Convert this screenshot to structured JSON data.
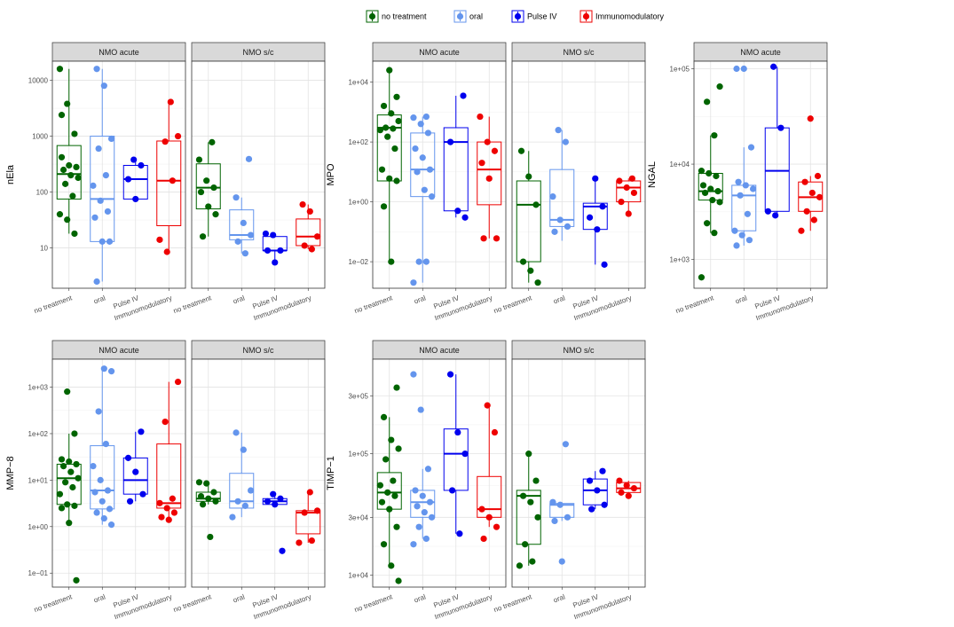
{
  "legend": {
    "items": [
      {
        "label": "no treatment",
        "color": "#006400"
      },
      {
        "label": "oral",
        "color": "#6495ED"
      },
      {
        "label": "Pulse IV",
        "color": "#0000EE"
      },
      {
        "label": "Immunomodulatory",
        "color": "#EE0000"
      }
    ]
  },
  "chart_data": [
    {
      "type": "boxplot",
      "ylabel": "nEla",
      "yscale": "log",
      "facets": [
        "NMO acute",
        "NMO s/c"
      ],
      "categories": [
        "no treatment",
        "oral",
        "Pulse IV",
        "Immunomodulatory"
      ],
      "yticks": [
        10,
        100,
        1000,
        10000
      ],
      "yticklabels": [
        "10",
        "100",
        "1000",
        "10000"
      ],
      "ylim": [
        1.9,
        22000
      ],
      "boxes": [
        [
          {
            "q1": 75,
            "med": 210,
            "q3": 680,
            "lo": 18,
            "hi": 16000,
            "pts": [
              16000,
              3800,
              1100,
              420,
              300,
              280,
              250,
              200,
              180,
              140,
              85,
              40,
              32,
              18,
              2400
            ]
          },
          {
            "q1": 13,
            "med": 75,
            "q3": 1000,
            "lo": 2.5,
            "hi": 16000,
            "pts": [
              16000,
              8000,
              900,
              600,
              200,
              130,
              70,
              45,
              35,
              13,
              13,
              2.5
            ]
          },
          {
            "q1": 75,
            "med": 170,
            "q3": 300,
            "lo": 75,
            "hi": 380,
            "pts": [
              380,
              300,
              170,
              75
            ]
          },
          {
            "q1": 25,
            "med": 160,
            "q3": 820,
            "lo": 8.5,
            "hi": 4100,
            "pts": [
              4100,
              1000,
              800,
              160,
              14,
              8.5
            ]
          }
        ],
        [
          {
            "q1": 50,
            "med": 120,
            "q3": 320,
            "lo": 16,
            "hi": 780,
            "pts": [
              780,
              380,
              160,
              120,
              100,
              55,
              40,
              16
            ]
          },
          {
            "q1": 14,
            "med": 17,
            "q3": 48,
            "lo": 8,
            "hi": 80,
            "pts": [
              390,
              80,
              28,
              17,
              13,
              8
            ]
          },
          {
            "q1": 9,
            "med": 9,
            "q3": 16,
            "lo": 5.5,
            "hi": 18,
            "pts": [
              18,
              17,
              9,
              9,
              5.5
            ]
          },
          {
            "q1": 11,
            "med": 16,
            "q3": 33,
            "lo": 9.5,
            "hi": 60,
            "pts": [
              60,
              45,
              16,
              11,
              9.5
            ]
          }
        ]
      ]
    },
    {
      "type": "boxplot",
      "ylabel": "MPO",
      "yscale": "log",
      "facets": [
        "NMO acute",
        "NMO s/c"
      ],
      "categories": [
        "no treatment",
        "oral",
        "Pulse IV",
        "Immunomodulatory"
      ],
      "yticks": [
        0.01,
        1,
        100,
        10000
      ],
      "yticklabels": [
        "1e−02",
        "1e+00",
        "1e+02",
        "1e+04"
      ],
      "ylim": [
        0.0013,
        50000
      ],
      "boxes": [
        [
          {
            "q1": 5,
            "med": 300,
            "q3": 800,
            "lo": 0.01,
            "hi": 25000,
            "pts": [
              25000,
              3200,
              1600,
              900,
              500,
              300,
              280,
              250,
              150,
              60,
              12,
              6,
              5,
              0.7,
              0.01
            ]
          },
          {
            "q1": 1.5,
            "med": 12,
            "q3": 200,
            "lo": 0.002,
            "hi": 700,
            "pts": [
              700,
              650,
              400,
              200,
              60,
              30,
              12,
              10,
              2.5,
              1.5,
              0.01,
              0.01,
              0.002
            ]
          },
          {
            "q1": 0.5,
            "med": 100,
            "q3": 300,
            "lo": 0.3,
            "hi": 3500,
            "pts": [
              3500,
              100,
              0.5,
              0.3
            ]
          },
          {
            "q1": 0.8,
            "med": 12,
            "q3": 100,
            "lo": 0.06,
            "hi": 700,
            "pts": [
              700,
              100,
              50,
              20,
              6,
              0.06,
              0.06
            ]
          }
        ],
        [
          {
            "q1": 0.01,
            "med": 0.8,
            "q3": 5,
            "lo": 0.002,
            "hi": 50,
            "pts": [
              50,
              7,
              0.8,
              0.01,
              0.005,
              0.002
            ]
          },
          {
            "q1": 0.15,
            "med": 0.25,
            "q3": 12,
            "lo": 0.05,
            "hi": 250,
            "pts": [
              250,
              100,
              1.5,
              0.25,
              0.15,
              0.1
            ]
          },
          {
            "q1": 0.12,
            "med": 0.7,
            "q3": 0.9,
            "lo": 0.008,
            "hi": 6,
            "pts": [
              6,
              0.7,
              0.3,
              0.12,
              0.008
            ]
          },
          {
            "q1": 1,
            "med": 3,
            "q3": 5,
            "lo": 0.4,
            "hi": 6,
            "pts": [
              6,
              5,
              3,
              2,
              1,
              0.4
            ]
          }
        ]
      ]
    },
    {
      "type": "boxplot",
      "ylabel": "NGAL",
      "yscale": "log",
      "facets": [
        "NMO acute",
        "NMO s/c"
      ],
      "categories": [
        "no treatment",
        "oral",
        "Pulse IV",
        "Immunomodulatory"
      ],
      "yticks": [
        1000,
        10000,
        100000
      ],
      "yticklabels": [
        "1e+03",
        "1e+04",
        "1e+05"
      ],
      "ylim": [
        500,
        120000
      ],
      "boxes": [
        [
          {
            "q1": 4200,
            "med": 5200,
            "q3": 8000,
            "lo": 1900,
            "hi": 20000,
            "pts": [
              65000,
              45000,
              20000,
              8500,
              8000,
              7500,
              6000,
              5500,
              5200,
              5000,
              4200,
              4000,
              2400,
              1900,
              650
            ]
          },
          {
            "q1": 2000,
            "med": 4700,
            "q3": 6000,
            "lo": 1400,
            "hi": 15000,
            "pts": [
              100000,
              100000,
              15000,
              6500,
              6000,
              5500,
              4700,
              3000,
              2000,
              1800,
              1600,
              1400
            ]
          },
          {
            "q1": 3200,
            "med": 8500,
            "q3": 24000,
            "lo": 2900,
            "hi": 105000,
            "pts": [
              105000,
              24000,
              3200,
              2900
            ]
          },
          {
            "q1": 3200,
            "med": 4500,
            "q3": 6500,
            "lo": 2000,
            "hi": 7500,
            "pts": [
              30000,
              7500,
              6500,
              5000,
              4500,
              3200,
              2600,
              2000
            ]
          }
        ],
        [
          {
            "q1": 1300,
            "med": 3000,
            "q3": 6000,
            "lo": 750,
            "hi": 12000,
            "pts": [
              12000,
              8000,
              5500,
              3500,
              2500,
              1800,
              900,
              750
            ]
          },
          {
            "q1": 1700,
            "med": 1750,
            "q3": 1850,
            "lo": 1400,
            "hi": 1950,
            "pts": [
              11000,
              1950,
              1850,
              1750,
              1700,
              1600,
              1400
            ]
          },
          {
            "q1": 3000,
            "med": 4500,
            "q3": 5500,
            "lo": 2200,
            "hi": 7500,
            "pts": [
              7500,
              5500,
              4500,
              3000,
              2200
            ]
          },
          {
            "q1": 3300,
            "med": 6000,
            "q3": 6500,
            "lo": 2500,
            "hi": 8000,
            "pts": [
              8000,
              6500,
              6000,
              3300,
              2800,
              2500
            ]
          }
        ]
      ]
    },
    {
      "type": "boxplot",
      "ylabel": "MMP−8",
      "yscale": "log",
      "facets": [
        "NMO acute",
        "NMO s/c"
      ],
      "categories": [
        "no treatment",
        "oral",
        "Pulse IV",
        "Immunomodulatory"
      ],
      "yticks": [
        0.1,
        1,
        10,
        100,
        1000
      ],
      "yticklabels": [
        "1e−01",
        "1e+00",
        "1e+01",
        "1e+02",
        "1e+03"
      ],
      "ylim": [
        0.05,
        4000
      ],
      "boxes": [
        [
          {
            "q1": 3,
            "med": 11,
            "q3": 22,
            "lo": 1.2,
            "hi": 100,
            "pts": [
              800,
              100,
              28,
              25,
              22,
              20,
              15,
              11,
              9,
              7,
              5,
              3,
              2.8,
              2.5,
              1.2,
              0.07
            ]
          },
          {
            "q1": 2.4,
            "med": 6,
            "q3": 55,
            "lo": 1.1,
            "hi": 2500,
            "pts": [
              2500,
              2200,
              300,
              60,
              20,
              10,
              6,
              5.5,
              3.5,
              2.4,
              2,
              1.5,
              1.1
            ]
          },
          {
            "q1": 5,
            "med": 10,
            "q3": 30,
            "lo": 3.5,
            "hi": 110,
            "pts": [
              110,
              30,
              15,
              5,
              3.5
            ]
          },
          {
            "q1": 2.5,
            "med": 3.2,
            "q3": 60,
            "lo": 1.4,
            "hi": 1300,
            "pts": [
              1300,
              180,
              4,
              3.2,
              2.5,
              2,
              1.6,
              1.4
            ]
          }
        ],
        [
          {
            "q1": 3.5,
            "med": 4,
            "q3": 5.5,
            "lo": 3,
            "hi": 9,
            "pts": [
              9,
              8.5,
              5.5,
              4.5,
              4,
              3.5,
              3,
              0.6
            ]
          },
          {
            "q1": 2.5,
            "med": 3.5,
            "q3": 14,
            "lo": 1.6,
            "hi": 105,
            "pts": [
              105,
              45,
              6,
              3.5,
              2.8,
              1.6
            ]
          },
          {
            "q1": 3,
            "med": 3.5,
            "q3": 4,
            "lo": 2.8,
            "hi": 5,
            "pts": [
              5,
              4,
              3.5,
              3,
              0.3
            ]
          },
          {
            "q1": 0.7,
            "med": 2,
            "q3": 2.2,
            "lo": 0.45,
            "hi": 5.5,
            "pts": [
              5.5,
              2.2,
              2,
              0.5,
              0.45
            ]
          }
        ]
      ]
    },
    {
      "type": "boxplot",
      "ylabel": "TIMP−1",
      "yscale": "log",
      "facets": [
        "NMO acute",
        "NMO s/c"
      ],
      "categories": [
        "no treatment",
        "oral",
        "Pulse IV",
        "Immunomodulatory"
      ],
      "yticks": [
        10000,
        30000,
        100000,
        300000
      ],
      "yticklabels": [
        "1e+04",
        "3e+04",
        "1e+05",
        "3e+05"
      ],
      "ylim": [
        8000,
        600000
      ],
      "boxes": [
        [
          {
            "q1": 35000,
            "med": 48000,
            "q3": 70000,
            "lo": 12000,
            "hi": 200000,
            "pts": [
              350000,
              200000,
              130000,
              110000,
              90000,
              60000,
              55000,
              48000,
              45000,
              40000,
              35000,
              25000,
              18000,
              12000,
              9000
            ]
          },
          {
            "q1": 30000,
            "med": 40000,
            "q3": 50000,
            "lo": 20000,
            "hi": 75000,
            "pts": [
              450000,
              230000,
              75000,
              50000,
              45000,
              40000,
              37000,
              33000,
              30000,
              25000,
              20000,
              18000
            ]
          },
          {
            "q1": 50000,
            "med": 100000,
            "q3": 160000,
            "lo": 22000,
            "hi": 450000,
            "pts": [
              450000,
              150000,
              100000,
              50000,
              22000
            ]
          },
          {
            "q1": 30000,
            "med": 35000,
            "q3": 65000,
            "lo": 25000,
            "hi": 250000,
            "pts": [
              250000,
              150000,
              35000,
              30000,
              25000,
              20000
            ]
          }
        ],
        [
          {
            "q1": 18000,
            "med": 45000,
            "q3": 50000,
            "lo": 12000,
            "hi": 100000,
            "pts": [
              100000,
              60000,
              45000,
              40000,
              30000,
              18000,
              13000,
              12000
            ]
          },
          {
            "q1": 30000,
            "med": 38000,
            "q3": 39000,
            "lo": 28000,
            "hi": 40000,
            "pts": [
              120000,
              40000,
              38000,
              30000,
              28000,
              13000
            ]
          },
          {
            "q1": 38000,
            "med": 50000,
            "q3": 62000,
            "lo": 35000,
            "hi": 72000,
            "pts": [
              72000,
              60000,
              50000,
              38000,
              35000
            ]
          },
          {
            "q1": 48000,
            "med": 52000,
            "q3": 58000,
            "lo": 45000,
            "hi": 60000,
            "pts": [
              60000,
              55000,
              52000,
              48000,
              45000
            ]
          }
        ]
      ]
    }
  ]
}
